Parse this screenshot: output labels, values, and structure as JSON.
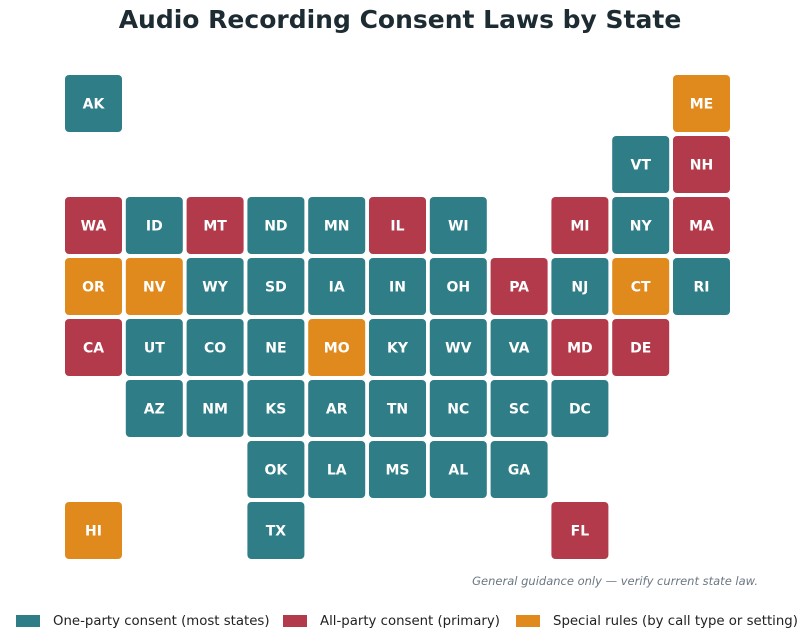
{
  "chart_data": {
    "type": "tile-map",
    "title": "Audio Recording Consent Laws by State",
    "categories": {
      "one": "One-party consent (most states)",
      "all": "All-party consent (primary)",
      "special": "Special rules (by call type or setting)"
    },
    "colors": {
      "one": "#2e7d87",
      "all": "#b23a4b",
      "special": "#e08a1e",
      "tile_text": "#ffffff"
    },
    "tiles": [
      {
        "state": "AK",
        "row": 0,
        "col": 0,
        "category": "one"
      },
      {
        "state": "ME",
        "row": 0,
        "col": 10,
        "category": "special"
      },
      {
        "state": "VT",
        "row": 1,
        "col": 9,
        "category": "one"
      },
      {
        "state": "NH",
        "row": 1,
        "col": 10,
        "category": "all"
      },
      {
        "state": "WA",
        "row": 2,
        "col": 0,
        "category": "all"
      },
      {
        "state": "ID",
        "row": 2,
        "col": 1,
        "category": "one"
      },
      {
        "state": "MT",
        "row": 2,
        "col": 2,
        "category": "all"
      },
      {
        "state": "ND",
        "row": 2,
        "col": 3,
        "category": "one"
      },
      {
        "state": "MN",
        "row": 2,
        "col": 4,
        "category": "one"
      },
      {
        "state": "IL",
        "row": 2,
        "col": 5,
        "category": "all"
      },
      {
        "state": "WI",
        "row": 2,
        "col": 6,
        "category": "one"
      },
      {
        "state": "MI",
        "row": 2,
        "col": 8,
        "category": "all"
      },
      {
        "state": "NY",
        "row": 2,
        "col": 9,
        "category": "one"
      },
      {
        "state": "MA",
        "row": 2,
        "col": 10,
        "category": "all"
      },
      {
        "state": "OR",
        "row": 3,
        "col": 0,
        "category": "special"
      },
      {
        "state": "NV",
        "row": 3,
        "col": 1,
        "category": "special"
      },
      {
        "state": "WY",
        "row": 3,
        "col": 2,
        "category": "one"
      },
      {
        "state": "SD",
        "row": 3,
        "col": 3,
        "category": "one"
      },
      {
        "state": "IA",
        "row": 3,
        "col": 4,
        "category": "one"
      },
      {
        "state": "IN",
        "row": 3,
        "col": 5,
        "category": "one"
      },
      {
        "state": "OH",
        "row": 3,
        "col": 6,
        "category": "one"
      },
      {
        "state": "PA",
        "row": 3,
        "col": 7,
        "category": "all"
      },
      {
        "state": "NJ",
        "row": 3,
        "col": 8,
        "category": "one"
      },
      {
        "state": "CT",
        "row": 3,
        "col": 9,
        "category": "special"
      },
      {
        "state": "RI",
        "row": 3,
        "col": 10,
        "category": "one"
      },
      {
        "state": "CA",
        "row": 4,
        "col": 0,
        "category": "all"
      },
      {
        "state": "UT",
        "row": 4,
        "col": 1,
        "category": "one"
      },
      {
        "state": "CO",
        "row": 4,
        "col": 2,
        "category": "one"
      },
      {
        "state": "NE",
        "row": 4,
        "col": 3,
        "category": "one"
      },
      {
        "state": "MO",
        "row": 4,
        "col": 4,
        "category": "special"
      },
      {
        "state": "KY",
        "row": 4,
        "col": 5,
        "category": "one"
      },
      {
        "state": "WV",
        "row": 4,
        "col": 6,
        "category": "one"
      },
      {
        "state": "VA",
        "row": 4,
        "col": 7,
        "category": "one"
      },
      {
        "state": "MD",
        "row": 4,
        "col": 8,
        "category": "all"
      },
      {
        "state": "DE",
        "row": 4,
        "col": 9,
        "category": "all"
      },
      {
        "state": "AZ",
        "row": 5,
        "col": 1,
        "category": "one"
      },
      {
        "state": "NM",
        "row": 5,
        "col": 2,
        "category": "one"
      },
      {
        "state": "KS",
        "row": 5,
        "col": 3,
        "category": "one"
      },
      {
        "state": "AR",
        "row": 5,
        "col": 4,
        "category": "one"
      },
      {
        "state": "TN",
        "row": 5,
        "col": 5,
        "category": "one"
      },
      {
        "state": "NC",
        "row": 5,
        "col": 6,
        "category": "one"
      },
      {
        "state": "SC",
        "row": 5,
        "col": 7,
        "category": "one"
      },
      {
        "state": "DC",
        "row": 5,
        "col": 8,
        "category": "one"
      },
      {
        "state": "OK",
        "row": 6,
        "col": 3,
        "category": "one"
      },
      {
        "state": "LA",
        "row": 6,
        "col": 4,
        "category": "one"
      },
      {
        "state": "MS",
        "row": 6,
        "col": 5,
        "category": "one"
      },
      {
        "state": "AL",
        "row": 6,
        "col": 6,
        "category": "one"
      },
      {
        "state": "GA",
        "row": 6,
        "col": 7,
        "category": "one"
      },
      {
        "state": "HI",
        "row": 7,
        "col": 0,
        "category": "special"
      },
      {
        "state": "TX",
        "row": 7,
        "col": 3,
        "category": "one"
      },
      {
        "state": "FL",
        "row": 7,
        "col": 8,
        "category": "all"
      }
    ],
    "note": "General guidance only — verify current state law.",
    "legend_position": "bottom"
  }
}
